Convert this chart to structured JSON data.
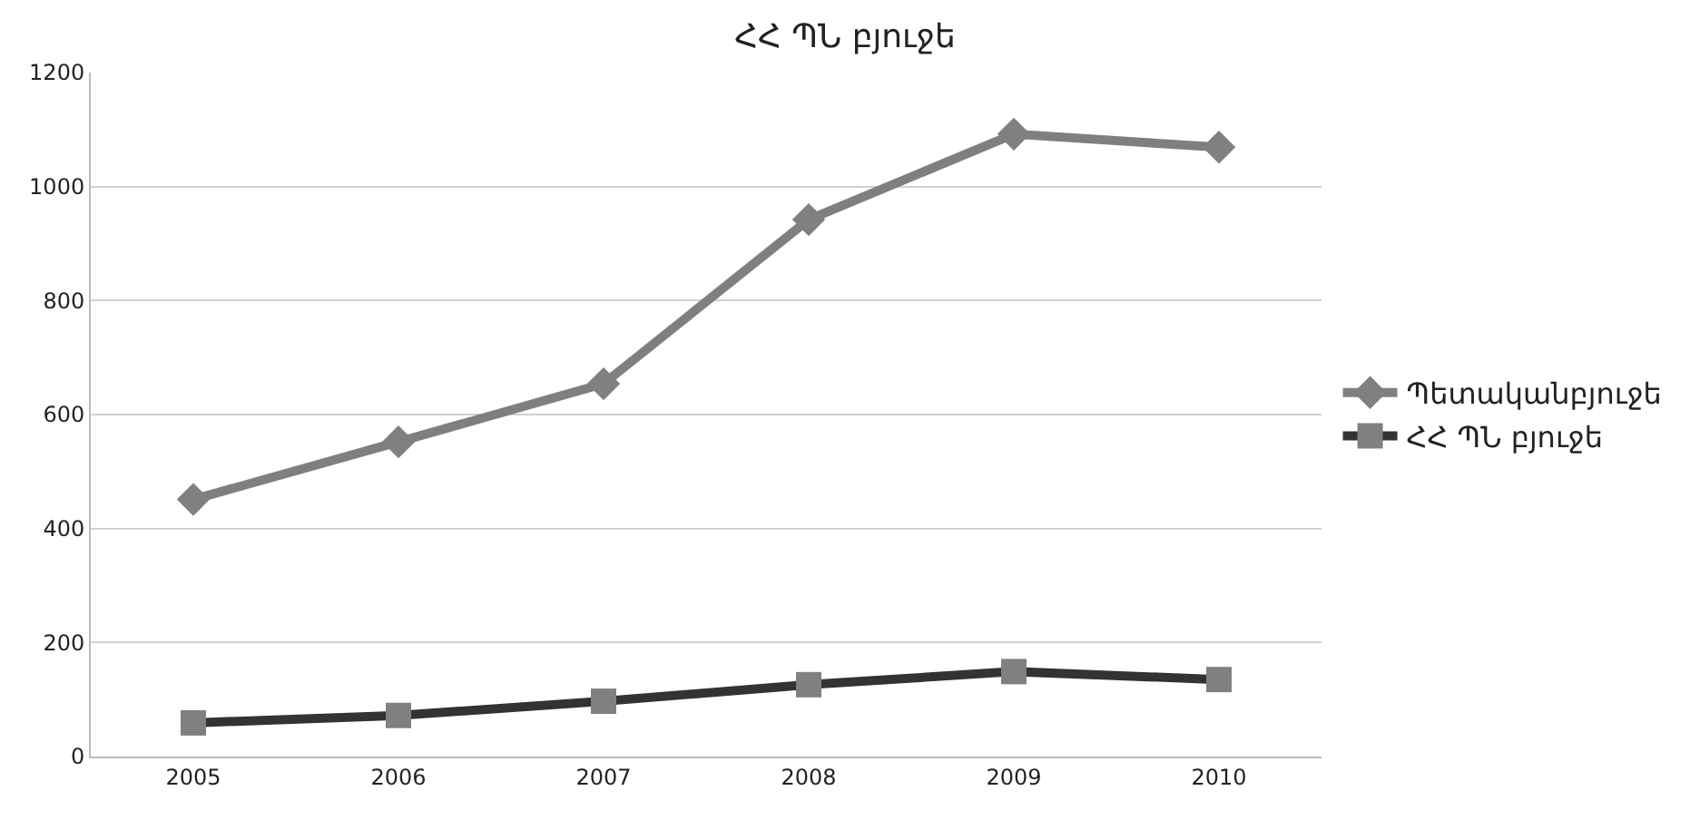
{
  "chart_data": {
    "type": "line",
    "title": "ՀՀ ՊՆ բյուջե",
    "categories": [
      "2005",
      "2006",
      "2007",
      "2008",
      "2009",
      "2010"
    ],
    "series": [
      {
        "name": "Պետականբյուջե",
        "color": "#7f7f7f",
        "marker": "diamond",
        "values": [
          451,
          552,
          654,
          942,
          1092,
          1069
        ]
      },
      {
        "name": "ՀՀ ՊՆ բյուջե",
        "color": "#333333",
        "marker": "square",
        "values": [
          59,
          72,
          97,
          126,
          149,
          135
        ]
      }
    ],
    "ylim": [
      0,
      1200
    ],
    "yticks": [
      0,
      200,
      400,
      600,
      800,
      1000,
      1200
    ],
    "grid": "y",
    "legend": "right"
  }
}
